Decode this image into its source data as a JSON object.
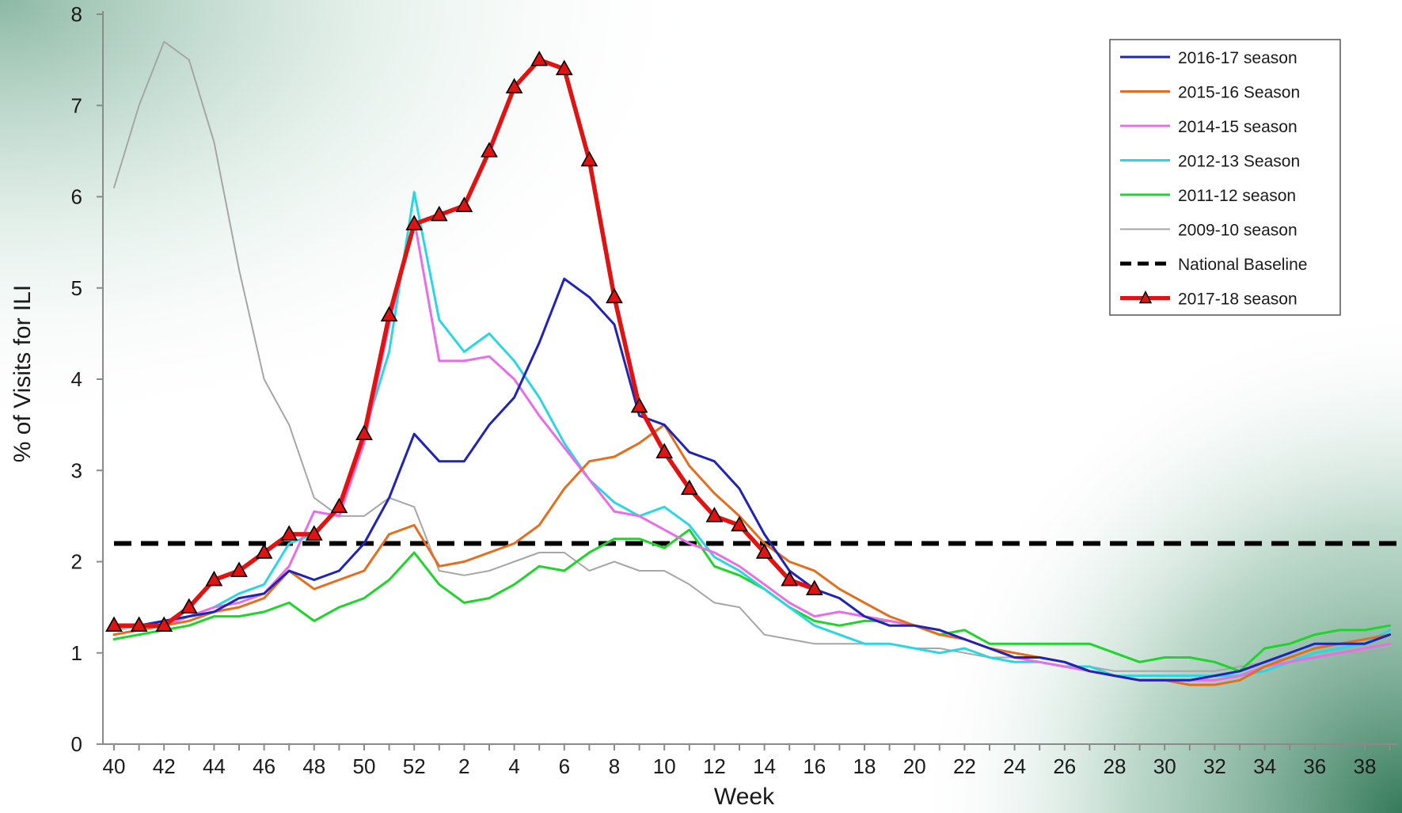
{
  "chart_data": {
    "type": "line",
    "xlabel": "Week",
    "ylabel": "% of Visits for ILI",
    "ylim": [
      0,
      8
    ],
    "yticks": [
      0,
      1,
      2,
      3,
      4,
      5,
      6,
      7,
      8
    ],
    "x_weeks": [
      40,
      41,
      42,
      43,
      44,
      45,
      46,
      47,
      48,
      49,
      50,
      51,
      52,
      1,
      2,
      3,
      4,
      5,
      6,
      7,
      8,
      9,
      10,
      11,
      12,
      13,
      14,
      15,
      16,
      17,
      18,
      19,
      20,
      21,
      22,
      23,
      24,
      25,
      26,
      27,
      28,
      29,
      30,
      31,
      32,
      33,
      34,
      35,
      36,
      37,
      38,
      39
    ],
    "xtick_labels": [
      "40",
      "42",
      "44",
      "46",
      "48",
      "50",
      "52",
      "2",
      "4",
      "6",
      "8",
      "10",
      "12",
      "14",
      "16",
      "18",
      "20",
      "22",
      "24",
      "26",
      "28",
      "30",
      "32",
      "34",
      "36",
      "38"
    ],
    "baseline": {
      "name": "National Baseline",
      "value": 2.2,
      "color": "#000000"
    },
    "legend_position": "top-right",
    "background": {
      "base": "#ffffff",
      "tint": "#2f7f5c"
    },
    "series": [
      {
        "name": "2016-17 season",
        "color": "#1f23b8",
        "values": [
          1.3,
          1.3,
          1.35,
          1.4,
          1.45,
          1.6,
          1.65,
          1.9,
          1.8,
          1.9,
          2.2,
          2.7,
          3.4,
          3.1,
          3.1,
          3.5,
          3.8,
          4.4,
          5.1,
          4.9,
          4.6,
          3.6,
          3.5,
          3.2,
          3.1,
          2.8,
          2.3,
          1.9,
          1.7,
          1.6,
          1.4,
          1.3,
          1.3,
          1.25,
          1.15,
          1.05,
          0.95,
          0.95,
          0.9,
          0.8,
          0.75,
          0.7,
          0.7,
          0.7,
          0.75,
          0.8,
          0.9,
          1.0,
          1.1,
          1.1,
          1.1,
          1.2
        ]
      },
      {
        "name": "2015-16 Season",
        "color": "#e46e1c",
        "values": [
          1.2,
          1.25,
          1.3,
          1.35,
          1.45,
          1.5,
          1.6,
          1.9,
          1.7,
          1.8,
          1.9,
          2.3,
          2.4,
          1.95,
          2.0,
          2.1,
          2.2,
          2.4,
          2.8,
          3.1,
          3.15,
          3.3,
          3.5,
          3.05,
          2.75,
          2.5,
          2.2,
          2.0,
          1.9,
          1.7,
          1.55,
          1.4,
          1.3,
          1.2,
          1.15,
          1.05,
          1.0,
          0.95,
          0.9,
          0.8,
          0.75,
          0.7,
          0.7,
          0.65,
          0.65,
          0.7,
          0.85,
          0.95,
          1.05,
          1.1,
          1.15,
          1.2
        ]
      },
      {
        "name": "2014-15 season",
        "color": "#e86ee8",
        "values": [
          1.2,
          1.25,
          1.3,
          1.4,
          1.5,
          1.55,
          1.65,
          1.95,
          2.55,
          2.5,
          3.3,
          4.6,
          5.75,
          4.2,
          4.2,
          4.25,
          4.0,
          3.6,
          3.25,
          2.9,
          2.55,
          2.5,
          2.35,
          2.2,
          2.1,
          1.95,
          1.75,
          1.55,
          1.4,
          1.45,
          1.4,
          1.35,
          1.3,
          1.25,
          1.15,
          1.05,
          0.95,
          0.9,
          0.85,
          0.8,
          0.75,
          0.7,
          0.7,
          0.7,
          0.7,
          0.75,
          0.85,
          0.9,
          0.95,
          1.0,
          1.05,
          1.1
        ]
      },
      {
        "name": "2012-13 Season",
        "color": "#2ad7e0",
        "values": [
          1.25,
          1.3,
          1.35,
          1.4,
          1.5,
          1.65,
          1.75,
          2.2,
          2.3,
          2.6,
          3.4,
          4.3,
          6.05,
          4.65,
          4.3,
          4.5,
          4.2,
          3.8,
          3.3,
          2.9,
          2.65,
          2.5,
          2.6,
          2.4,
          2.05,
          1.9,
          1.7,
          1.5,
          1.3,
          1.2,
          1.1,
          1.1,
          1.05,
          1.0,
          1.05,
          0.95,
          0.9,
          0.9,
          0.85,
          0.85,
          0.75,
          0.75,
          0.75,
          0.75,
          0.75,
          0.75,
          0.8,
          0.9,
          1.0,
          1.05,
          1.1,
          1.25
        ]
      },
      {
        "name": "2011-12 season",
        "color": "#1fd42a",
        "values": [
          1.15,
          1.2,
          1.25,
          1.3,
          1.4,
          1.4,
          1.45,
          1.55,
          1.35,
          1.5,
          1.6,
          1.8,
          2.1,
          1.75,
          1.55,
          1.6,
          1.75,
          1.95,
          1.9,
          2.1,
          2.25,
          2.25,
          2.15,
          2.35,
          1.95,
          1.85,
          1.7,
          1.5,
          1.35,
          1.3,
          1.35,
          1.35,
          1.3,
          1.2,
          1.25,
          1.1,
          1.1,
          1.1,
          1.1,
          1.1,
          1.0,
          0.9,
          0.95,
          0.95,
          0.9,
          0.8,
          1.05,
          1.1,
          1.2,
          1.25,
          1.25,
          1.3
        ]
      },
      {
        "name": "2009-10 season",
        "color": "#a6a6a6",
        "values": [
          6.1,
          7.0,
          7.7,
          7.5,
          6.6,
          5.2,
          4.0,
          3.5,
          2.7,
          2.5,
          2.5,
          2.7,
          2.6,
          1.9,
          1.85,
          1.9,
          2.0,
          2.1,
          2.1,
          1.9,
          2.0,
          1.9,
          1.9,
          1.75,
          1.55,
          1.5,
          1.2,
          1.15,
          1.1,
          1.1,
          1.1,
          1.1,
          1.05,
          1.05,
          1.0,
          0.95,
          0.95,
          0.9,
          0.85,
          0.85,
          0.8,
          0.8,
          0.8,
          0.8,
          0.8,
          0.85,
          0.9,
          0.95,
          0.95,
          1.0,
          1.0,
          1.05
        ]
      },
      {
        "name": "2017-18 season",
        "color": "#e01212",
        "marker": "triangle",
        "values": [
          1.3,
          1.3,
          1.3,
          1.5,
          1.8,
          1.9,
          2.1,
          2.3,
          2.3,
          2.6,
          3.4,
          4.7,
          5.7,
          5.8,
          5.9,
          6.5,
          7.2,
          7.5,
          7.4,
          6.4,
          4.9,
          3.7,
          3.2,
          2.8,
          2.5,
          2.4,
          2.1,
          1.8,
          1.7
        ]
      }
    ],
    "legend_order": [
      "2016-17 season",
      "2015-16 Season",
      "2014-15 season",
      "2012-13 Season",
      "2011-12 season",
      "2009-10 season",
      "National Baseline",
      "2017-18 season"
    ]
  }
}
